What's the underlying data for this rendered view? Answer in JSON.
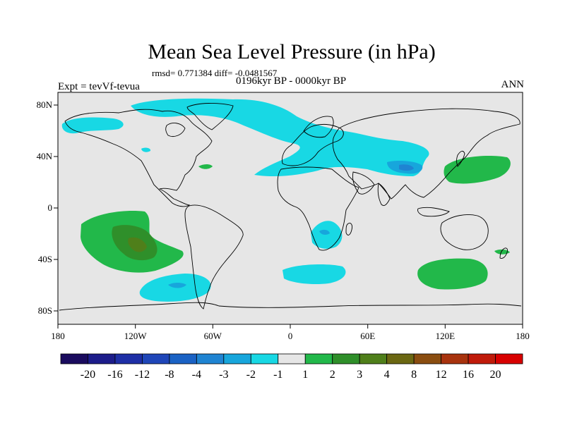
{
  "title": "Mean Sea Level Pressure (in hPa)",
  "stats": "rmsd= 0.771384 diff= -0.0481567",
  "period": "0196kyr BP - 0000kyr BP",
  "experiment": "Expt = tevVf-tevua",
  "season": "ANN",
  "axes": {
    "x_ticks": [
      "180",
      "120W",
      "60W",
      "0",
      "60E",
      "120E",
      "180"
    ],
    "y_ticks": [
      "80N",
      "40N",
      "0",
      "40S",
      "80S"
    ]
  },
  "colorbar": {
    "labels": [
      "-20",
      "-16",
      "-12",
      "-8",
      "-4",
      "-3",
      "-2",
      "-1",
      "1",
      "2",
      "3",
      "4",
      "8",
      "12",
      "16",
      "20"
    ],
    "colors": [
      "#1a0b5e",
      "#1c1c8a",
      "#1e2fa6",
      "#1f46b8",
      "#1a62c4",
      "#1f84d2",
      "#17a6dc",
      "#18d8e4",
      "#e6e6e6",
      "#22b84a",
      "#2f8f2a",
      "#4f7f1a",
      "#6b6712",
      "#8a4d10",
      "#a8330e",
      "#c01a0a",
      "#d80000"
    ]
  },
  "colors": {
    "map_background": "#e6e6e6",
    "level_minus1": "#18d8e4",
    "level_minus2": "#17a6dc",
    "level_minus3": "#1f84d2",
    "level_plus1": "#22b84a",
    "level_plus2": "#2f8f2a",
    "level_plus3": "#4f7f1a"
  }
}
